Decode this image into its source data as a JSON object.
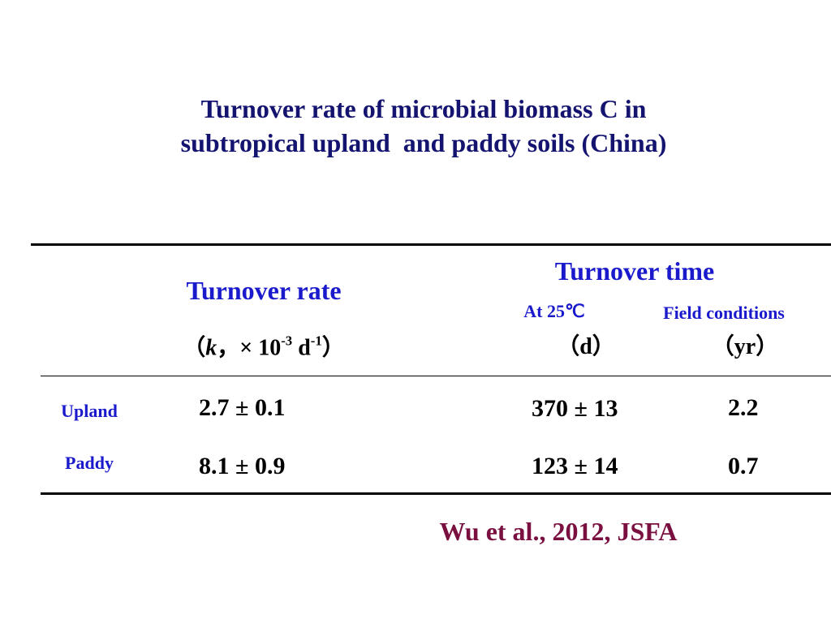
{
  "title": {
    "lines": [
      "Turnover rate of microbial biomass C in",
      "subtropical upland  and paddy soils (China)"
    ]
  },
  "table": {
    "header": {
      "rate": "Turnover rate",
      "rate_unit": [
        "（",
        "k",
        "，× 10",
        "-3",
        " d",
        "-1",
        "）"
      ],
      "time": "Turnover time",
      "at_temp": "At 25℃",
      "field": "Field conditions",
      "at_temp_unit": "（d）",
      "field_unit": "（yr）"
    },
    "rows": [
      [
        "Upland",
        "2.7 ± 0.1",
        "370 ± 13",
        "2.2"
      ],
      [
        "Paddy",
        "8.1 ± 0.9",
        "123 ± 14",
        "0.7"
      ]
    ]
  },
  "citation": "Wu et al., 2012, JSFA"
}
